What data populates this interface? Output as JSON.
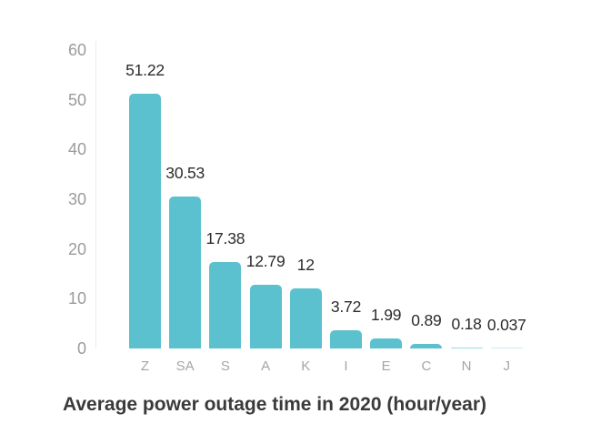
{
  "chart_data": {
    "type": "bar",
    "title": "Average power outage time in 2020 (hour/year)",
    "categories": [
      "Z",
      "SA",
      "S",
      "A",
      "K",
      "I",
      "E",
      "C",
      "N",
      "J"
    ],
    "values": [
      51.22,
      30.53,
      17.38,
      12.79,
      12,
      3.72,
      1.99,
      0.89,
      0.18,
      0.037
    ],
    "value_labels": [
      "51.22",
      "30.53",
      "17.38",
      "12.79",
      "12",
      "3.72",
      "1.99",
      "0.89",
      "0.18",
      "0.037"
    ],
    "y_ticks": [
      0,
      10,
      20,
      30,
      40,
      50,
      60
    ],
    "ylim": [
      0,
      60
    ],
    "xlabel": "",
    "ylabel": "",
    "grid": false,
    "legend_position": "none",
    "colors": {
      "bar": "#5BC1CE",
      "axis_line": "#EBEBEB",
      "y_tick_label": "#9B9B9B",
      "x_tick_label": "#A5A5A5",
      "value_label": "#2B2B2B",
      "title": "#3A3A3A",
      "background": "#FFFFFF"
    }
  }
}
